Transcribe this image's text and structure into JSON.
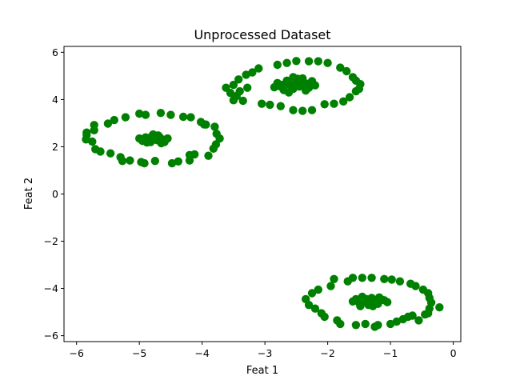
{
  "chart_data": {
    "type": "scatter",
    "title": "Unprocessed Dataset",
    "xlabel": "Feat 1",
    "ylabel": "Feat 2",
    "xlim": [
      -6.2,
      0.12
    ],
    "ylim": [
      -6.25,
      6.25
    ],
    "xticks": [
      -6,
      -5,
      -4,
      -3,
      -2,
      -1,
      0
    ],
    "xtick_labels": [
      "−6",
      "−5",
      "−4",
      "−3",
      "−2",
      "−1",
      "0"
    ],
    "yticks": [
      -6,
      -4,
      -2,
      0,
      2,
      4,
      6
    ],
    "ytick_labels": [
      "−6",
      "−4",
      "−2",
      "0",
      "2",
      "4",
      "6"
    ],
    "grid": false,
    "legend": "none",
    "marker_color": "#008000",
    "series": [
      {
        "points": [
          [
            -5.84,
            2.6
          ],
          [
            -5.84,
            2.5
          ],
          [
            -5.72,
            2.92
          ],
          [
            -5.72,
            2.7
          ],
          [
            -5.85,
            2.31
          ],
          [
            -5.75,
            2.22
          ],
          [
            -5.7,
            1.9
          ],
          [
            -5.62,
            1.8
          ],
          [
            -5.5,
            2.98
          ],
          [
            -5.46,
            1.72
          ],
          [
            -5.4,
            3.13
          ],
          [
            -5.3,
            1.56
          ],
          [
            -5.27,
            1.4
          ],
          [
            -5.22,
            3.25
          ],
          [
            -5.15,
            1.42
          ],
          [
            -5.0,
            3.4
          ],
          [
            -4.9,
            3.35
          ],
          [
            -4.97,
            1.35
          ],
          [
            -4.92,
            1.3
          ],
          [
            -4.75,
            1.4
          ],
          [
            -4.66,
            3.43
          ],
          [
            -4.5,
            3.35
          ],
          [
            -4.48,
            1.3
          ],
          [
            -4.38,
            1.38
          ],
          [
            -4.3,
            3.27
          ],
          [
            -4.2,
            1.42
          ],
          [
            -4.18,
            3.25
          ],
          [
            -4.2,
            1.65
          ],
          [
            -4.12,
            1.68
          ],
          [
            -4.02,
            3.05
          ],
          [
            -3.97,
            2.95
          ],
          [
            -3.9,
            1.62
          ],
          [
            -3.82,
            1.92
          ],
          [
            -3.78,
            2.1
          ],
          [
            -3.72,
            2.35
          ],
          [
            -3.77,
            2.55
          ],
          [
            -3.8,
            2.85
          ],
          [
            -3.94,
            2.94
          ],
          [
            -5.0,
            2.35
          ],
          [
            -4.95,
            2.25
          ],
          [
            -4.9,
            2.4
          ],
          [
            -4.85,
            2.3
          ],
          [
            -4.82,
            2.2
          ],
          [
            -4.8,
            2.45
          ],
          [
            -4.75,
            2.35
          ],
          [
            -4.72,
            2.28
          ],
          [
            -4.68,
            2.42
          ],
          [
            -4.62,
            2.3
          ],
          [
            -4.6,
            2.2
          ],
          [
            -4.55,
            2.35
          ],
          [
            -4.88,
            2.18
          ],
          [
            -4.78,
            2.52
          ],
          [
            -4.7,
            2.48
          ],
          [
            -4.65,
            2.15
          ],
          [
            -3.55,
            4.28
          ],
          [
            -3.5,
            4.62
          ],
          [
            -3.5,
            3.97
          ],
          [
            -3.42,
            4.85
          ],
          [
            -3.4,
            4.35
          ],
          [
            -3.35,
            3.95
          ],
          [
            -3.3,
            5.05
          ],
          [
            -3.28,
            4.5
          ],
          [
            -3.2,
            5.15
          ],
          [
            -3.1,
            5.32
          ],
          [
            -3.05,
            3.82
          ],
          [
            -2.92,
            3.78
          ],
          [
            -2.8,
            5.47
          ],
          [
            -2.75,
            3.72
          ],
          [
            -2.65,
            5.55
          ],
          [
            -2.55,
            3.55
          ],
          [
            -2.5,
            5.63
          ],
          [
            -2.4,
            3.52
          ],
          [
            -2.3,
            5.62
          ],
          [
            -2.25,
            3.55
          ],
          [
            -2.15,
            5.62
          ],
          [
            -2.05,
            3.8
          ],
          [
            -2.0,
            5.55
          ],
          [
            -1.9,
            3.82
          ],
          [
            -1.8,
            5.35
          ],
          [
            -1.75,
            3.92
          ],
          [
            -1.7,
            5.2
          ],
          [
            -1.65,
            4.1
          ],
          [
            -1.6,
            4.95
          ],
          [
            -1.55,
            4.8
          ],
          [
            -1.55,
            4.35
          ],
          [
            -1.48,
            4.65
          ],
          [
            -1.5,
            4.45
          ],
          [
            -3.62,
            4.5
          ],
          [
            -3.45,
            4.15
          ],
          [
            -2.8,
            4.7
          ],
          [
            -2.75,
            4.55
          ],
          [
            -2.7,
            4.4
          ],
          [
            -2.65,
            4.8
          ],
          [
            -2.6,
            4.62
          ],
          [
            -2.55,
            4.45
          ],
          [
            -2.5,
            4.75
          ],
          [
            -2.45,
            4.55
          ],
          [
            -2.4,
            4.9
          ],
          [
            -2.35,
            4.68
          ],
          [
            -2.3,
            4.5
          ],
          [
            -2.25,
            4.78
          ],
          [
            -2.2,
            4.6
          ],
          [
            -2.62,
            4.3
          ],
          [
            -2.48,
            4.88
          ],
          [
            -2.72,
            4.62
          ],
          [
            -2.35,
            4.38
          ],
          [
            -2.85,
            4.52
          ],
          [
            -2.42,
            4.65
          ],
          [
            -2.55,
            4.95
          ],
          [
            -2.35,
            -4.45
          ],
          [
            -2.3,
            -4.7
          ],
          [
            -2.25,
            -4.2
          ],
          [
            -2.2,
            -4.85
          ],
          [
            -2.15,
            -4.05
          ],
          [
            -2.1,
            -5.05
          ],
          [
            -2.05,
            -5.2
          ],
          [
            -1.95,
            -3.9
          ],
          [
            -1.9,
            -3.6
          ],
          [
            -1.85,
            -5.35
          ],
          [
            -1.8,
            -5.5
          ],
          [
            -1.68,
            -3.7
          ],
          [
            -1.6,
            -3.55
          ],
          [
            -1.55,
            -5.55
          ],
          [
            -1.45,
            -3.55
          ],
          [
            -1.4,
            -5.5
          ],
          [
            -1.3,
            -3.55
          ],
          [
            -1.25,
            -5.62
          ],
          [
            -1.2,
            -5.55
          ],
          [
            -1.1,
            -3.6
          ],
          [
            -1.0,
            -5.5
          ],
          [
            -0.98,
            -3.62
          ],
          [
            -0.9,
            -5.4
          ],
          [
            -0.85,
            -3.7
          ],
          [
            -0.8,
            -5.3
          ],
          [
            -0.72,
            -5.2
          ],
          [
            -0.68,
            -3.8
          ],
          [
            -0.6,
            -3.9
          ],
          [
            -0.55,
            -5.35
          ],
          [
            -0.48,
            -4.05
          ],
          [
            -0.4,
            -4.2
          ],
          [
            -0.38,
            -4.4
          ],
          [
            -0.35,
            -4.6
          ],
          [
            -0.38,
            -4.85
          ],
          [
            -0.4,
            -5.05
          ],
          [
            -0.45,
            -5.1
          ],
          [
            -0.22,
            -4.8
          ],
          [
            -0.65,
            -5.15
          ],
          [
            -1.55,
            -4.45
          ],
          [
            -1.5,
            -4.6
          ],
          [
            -1.45,
            -4.35
          ],
          [
            -1.4,
            -4.55
          ],
          [
            -1.35,
            -4.7
          ],
          [
            -1.3,
            -4.4
          ],
          [
            -1.25,
            -4.55
          ],
          [
            -1.2,
            -4.65
          ],
          [
            -1.15,
            -4.45
          ],
          [
            -1.1,
            -4.5
          ],
          [
            -1.6,
            -4.55
          ],
          [
            -1.38,
            -4.45
          ],
          [
            -1.28,
            -4.75
          ],
          [
            -1.48,
            -4.75
          ],
          [
            -1.18,
            -4.38
          ],
          [
            -1.05,
            -4.58
          ]
        ]
      }
    ]
  }
}
